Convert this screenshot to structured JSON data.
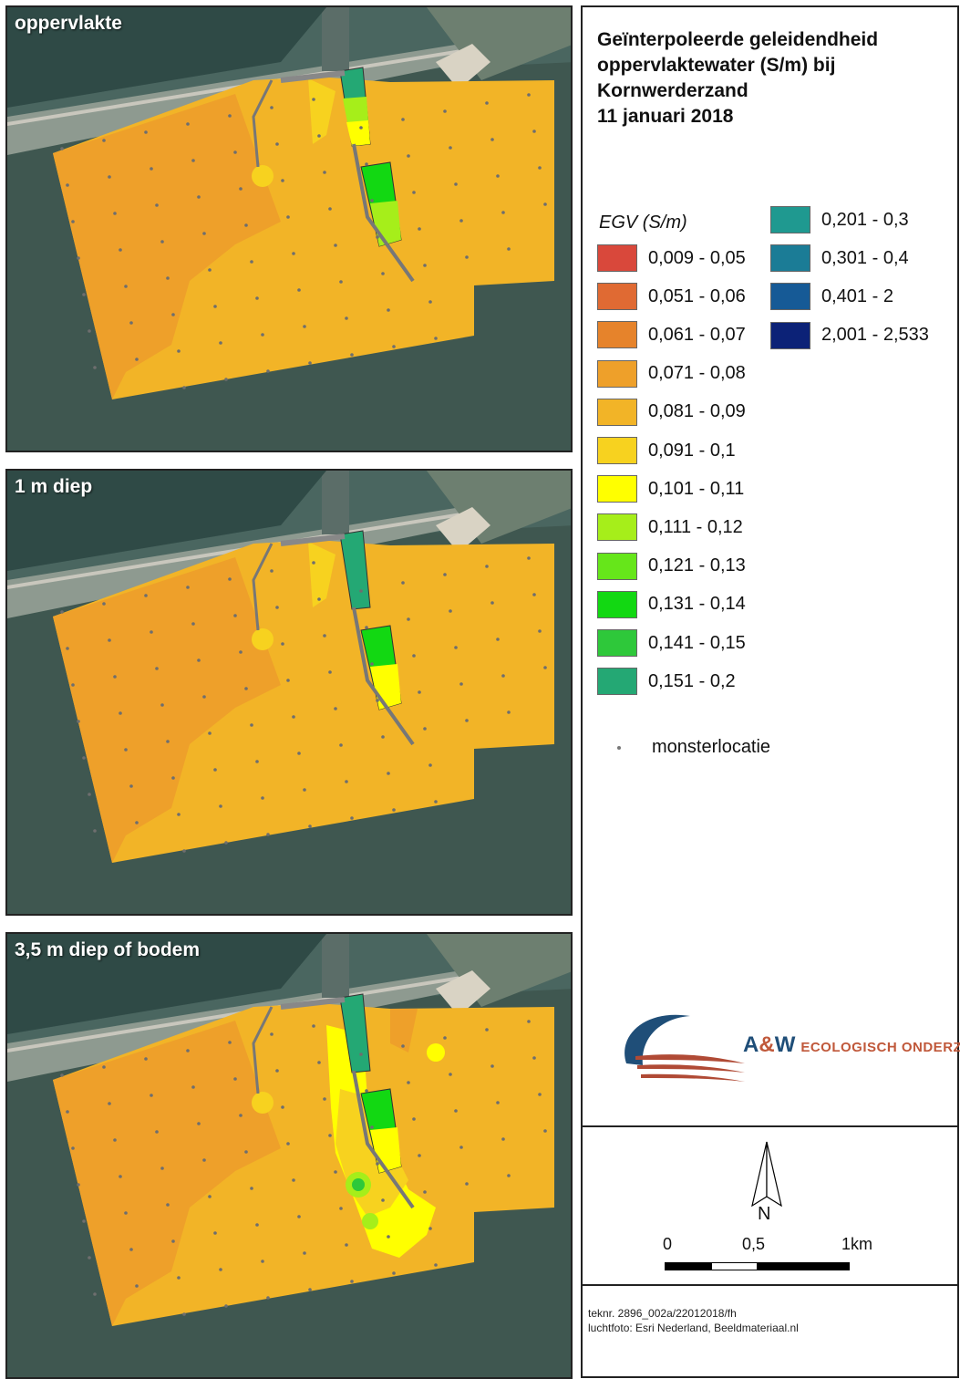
{
  "panels": [
    {
      "label": "oppervlakte",
      "highlight": "surface"
    },
    {
      "label": "1 m diep",
      "highlight": "mid"
    },
    {
      "label": "3,5 m diep of bodem",
      "highlight": "bottom"
    }
  ],
  "title": {
    "lines": [
      "Geïnterpoleerde geleidendheid",
      "oppervlaktewater (S/m) bij",
      "Kornwerderzand",
      "11 januari 2018"
    ]
  },
  "legend": {
    "heading": "EGV (S/m)",
    "classes": [
      {
        "label": "0,009 - 0,05",
        "color": "#d9483b"
      },
      {
        "label": "0,051 - 0,06",
        "color": "#e06a33"
      },
      {
        "label": "0,061 - 0,07",
        "color": "#e6832b"
      },
      {
        "label": "0,071 - 0,08",
        "color": "#eea02a"
      },
      {
        "label": "0,081 - 0,09",
        "color": "#f2b427"
      },
      {
        "label": "0,091 - 0,1",
        "color": "#f7d21f"
      },
      {
        "label": "0,101 - 0,11",
        "color": "#ffff00"
      },
      {
        "label": "0,111 - 0,12",
        "color": "#a6ee1a"
      },
      {
        "label": "0,121 - 0,13",
        "color": "#66e61a"
      },
      {
        "label": "0,131 - 0,14",
        "color": "#12d812"
      },
      {
        "label": "0,141 - 0,15",
        "color": "#2ec83a"
      },
      {
        "label": "0,151 - 0,2",
        "color": "#24a874"
      },
      {
        "label": "0,201 - 0,3",
        "color": "#1f9990"
      },
      {
        "label": "0,301 - 0,4",
        "color": "#1b7c96"
      },
      {
        "label": "0,401 - 2",
        "color": "#165a96"
      },
      {
        "label": "2,001 - 2,533",
        "color": "#0c2277"
      }
    ],
    "sample_label": "monsterlocatie"
  },
  "logo": {
    "brand": "A&W",
    "brand_a": "A",
    "brand_amp": "&",
    "brand_w": "W",
    "subtitle": "ECOLOGISCH ONDERZOEK"
  },
  "north_label": "N",
  "scale": {
    "labels": [
      "0",
      "0,5",
      "1km"
    ]
  },
  "credits": {
    "line1": "teknr. 2896_002a/22012018/fh",
    "line2": "luchtfoto: Esri Nederland, Beeldmateriaal.nl"
  }
}
